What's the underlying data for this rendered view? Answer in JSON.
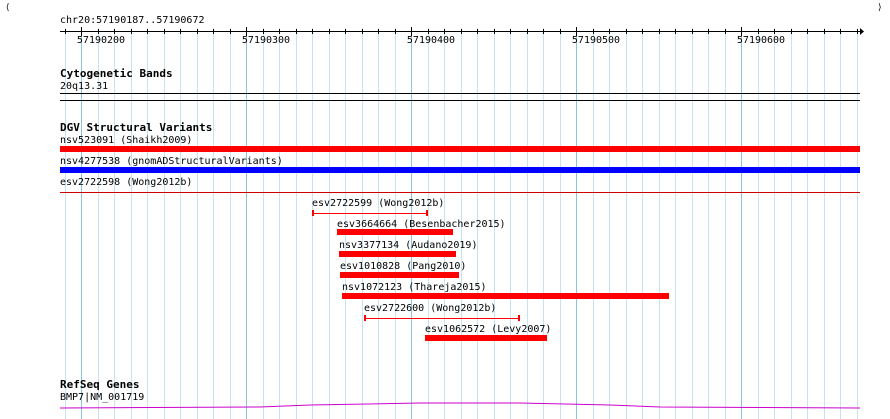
{
  "ruler": {
    "location": "chr20:57190187..57190672",
    "ticks": [
      "57190200",
      "57190300",
      "57190400",
      "57190500",
      "57190600"
    ],
    "range_start": 57190187,
    "range_end": 57190672
  },
  "tracks": {
    "cytoband": {
      "title": "Cytogenetic Bands",
      "band_label": "20q13.31"
    },
    "dgv": {
      "title": "DGV Structural Variants",
      "features": [
        {
          "label": "nsv523091 (Shaikh2009)",
          "start": 57190187,
          "end": 57190672,
          "color": "#ff0000",
          "style": "solid"
        },
        {
          "label": "nsv4277538 (gnomADStructuralVariants)",
          "start": 57190187,
          "end": 57190672,
          "color": "#0000ff",
          "style": "solid"
        },
        {
          "label": "esv2722598 (Wong2012b)",
          "start": 57190187,
          "end": 57190672,
          "color": "#cc0000",
          "style": "thin"
        },
        {
          "label": "esv2722599 (Wong2012b)",
          "start": 57190340,
          "end": 57190410,
          "color": "#ff0000",
          "style": "thin"
        },
        {
          "label": "esv3664664 (Besenbacher2015)",
          "start": 57190355,
          "end": 57190425,
          "color": "#ff0000",
          "style": "solid"
        },
        {
          "label": "nsv3377134 (Audano2019)",
          "start": 57190356,
          "end": 57190427,
          "color": "#ff0000",
          "style": "solid"
        },
        {
          "label": "esv1010828 (Pang2010)",
          "start": 57190357,
          "end": 57190429,
          "color": "#ff0000",
          "style": "solid"
        },
        {
          "label": "nsv1072123 (Thareja2015)",
          "start": 57190358,
          "end": 57190556,
          "color": "#ff0000",
          "style": "solid"
        },
        {
          "label": "esv2722600 (Wong2012b)",
          "start": 57190371,
          "end": 57190466,
          "color": "#ff0000",
          "style": "thin"
        },
        {
          "label": "esv1062572 (Levy2007)",
          "start": 57190408,
          "end": 57190482,
          "color": "#ff0000",
          "style": "solid"
        }
      ]
    },
    "refseq": {
      "title": "RefSeq Genes",
      "gene_label": "BMP7|NM_001719",
      "color": "#cc00cc"
    }
  }
}
